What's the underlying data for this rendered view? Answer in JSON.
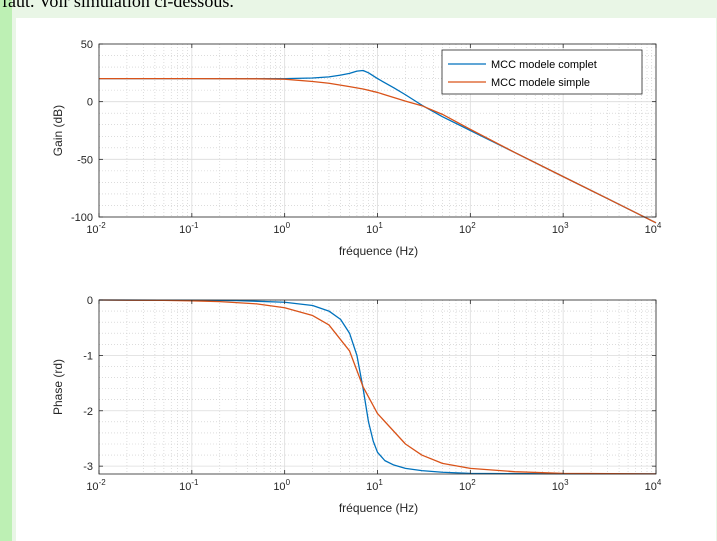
{
  "page": {
    "top_text": "faut. Voir simulation ci-dessous."
  },
  "colors": {
    "series_complet": "#0072bd",
    "series_simple": "#d95319",
    "grid": "#dcdcdc",
    "background": "#e9f6e6",
    "accent_bar": "#bdf0b4"
  },
  "chart_data": [
    {
      "type": "line",
      "id": "gain",
      "xscale": "log",
      "xlim": [
        0.01,
        10000
      ],
      "ylim": [
        -100,
        50
      ],
      "xlabel": "fréquence (Hz)",
      "ylabel": "Gain (dB)",
      "yticks": [
        -100,
        -50,
        0,
        50
      ],
      "ytick_labels": [
        "-100",
        "-50",
        "0",
        "50"
      ],
      "xticks": [
        0.01,
        0.1,
        1,
        10,
        100,
        1000,
        10000
      ],
      "xtick_bases": [
        "10",
        "10",
        "10",
        "10",
        "10",
        "10",
        "10"
      ],
      "xtick_exps": [
        "-2",
        "-1",
        "0",
        "1",
        "2",
        "3",
        "4"
      ],
      "grid": true,
      "legend_position": "top-right",
      "series": [
        {
          "name": "MCC modele complet",
          "x": [
            0.01,
            0.1,
            0.5,
            1,
            2,
            3,
            4,
            5,
            6,
            7,
            8,
            10,
            15,
            20,
            30,
            50,
            100,
            300,
            1000,
            3000,
            10000
          ],
          "y": [
            20,
            20,
            20,
            20,
            20.5,
            21.5,
            23,
            24.5,
            26.5,
            27,
            25,
            20,
            12,
            6,
            -3,
            -13,
            -25,
            -44,
            -65,
            -84,
            -105
          ]
        },
        {
          "name": "MCC modele simple",
          "x": [
            0.01,
            0.1,
            0.5,
            1,
            2,
            3,
            5,
            7,
            10,
            20,
            30,
            50,
            100,
            300,
            1000,
            3000,
            10000
          ],
          "y": [
            20,
            20,
            19.8,
            19.5,
            17.5,
            16,
            13,
            11,
            8,
            0.5,
            -3.5,
            -11,
            -24,
            -44,
            -65,
            -84,
            -105
          ]
        }
      ]
    },
    {
      "type": "line",
      "id": "phase",
      "xscale": "log",
      "xlim": [
        0.01,
        10000
      ],
      "ylim": [
        -3.14159,
        0
      ],
      "xlabel": "fréquence (Hz)",
      "ylabel": "Phase (rd)",
      "yticks": [
        -3,
        -2,
        -1,
        0
      ],
      "ytick_labels": [
        "-3",
        "-2",
        "-1",
        "0"
      ],
      "xticks": [
        0.01,
        0.1,
        1,
        10,
        100,
        1000,
        10000
      ],
      "xtick_bases": [
        "10",
        "10",
        "10",
        "10",
        "10",
        "10",
        "10"
      ],
      "xtick_exps": [
        "-2",
        "-1",
        "0",
        "1",
        "2",
        "3",
        "4"
      ],
      "grid": true,
      "series": [
        {
          "name": "MCC modele complet",
          "x": [
            0.01,
            0.1,
            0.3,
            1,
            2,
            3,
            4,
            5,
            6,
            7,
            8,
            9,
            10,
            12,
            15,
            20,
            30,
            50,
            100,
            1000,
            10000
          ],
          "y": [
            0,
            -0.005,
            -0.01,
            -0.04,
            -0.1,
            -0.2,
            -0.35,
            -0.6,
            -1.0,
            -1.6,
            -2.2,
            -2.55,
            -2.75,
            -2.9,
            -2.98,
            -3.04,
            -3.08,
            -3.11,
            -3.13,
            -3.14,
            -3.14
          ]
        },
        {
          "name": "MCC modele simple",
          "x": [
            0.01,
            0.05,
            0.1,
            0.2,
            0.5,
            1,
            2,
            3,
            5,
            7,
            10,
            20,
            30,
            50,
            100,
            300,
            1000,
            10000
          ],
          "y": [
            0,
            -0.007,
            -0.015,
            -0.03,
            -0.07,
            -0.14,
            -0.28,
            -0.45,
            -0.92,
            -1.57,
            -2.05,
            -2.6,
            -2.8,
            -2.95,
            -3.04,
            -3.1,
            -3.13,
            -3.14
          ]
        }
      ]
    }
  ]
}
